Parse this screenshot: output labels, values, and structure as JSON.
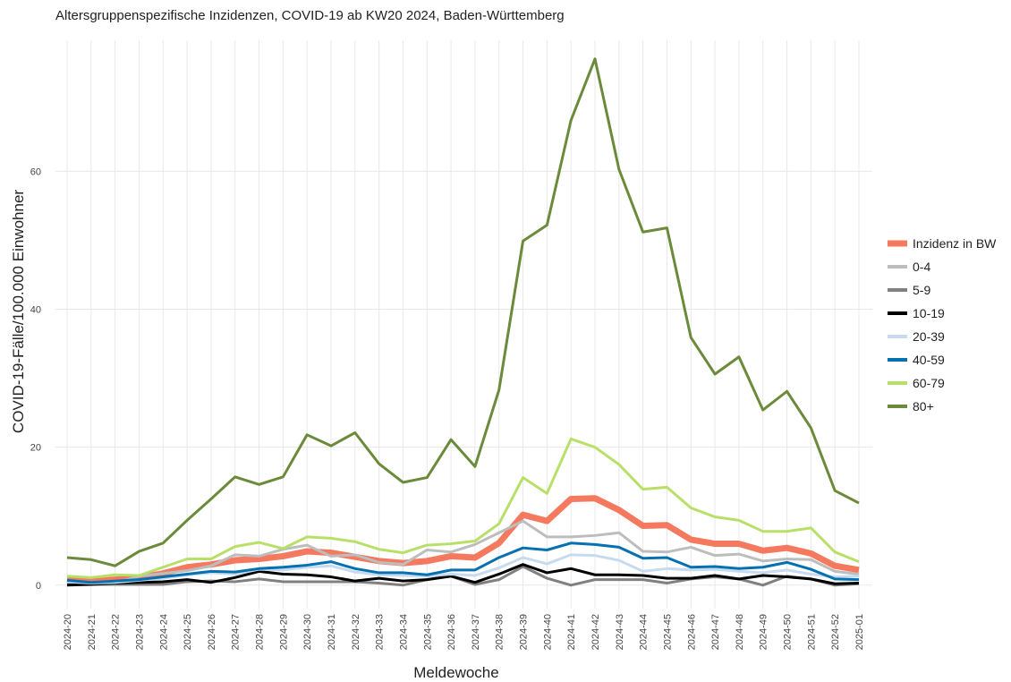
{
  "chart_data": {
    "type": "line",
    "title": "Altersgruppenspezifische Inzidenzen, COVID-19 ab KW20 2024, Baden-Württemberg",
    "x_label": "Meldewoche",
    "y_label": "COVID-19-Fälle/100.000 Einwohner",
    "categories": [
      "2024-20",
      "2024-21",
      "2024-22",
      "2024-23",
      "2024-24",
      "2024-25",
      "2024-26",
      "2024-27",
      "2024-28",
      "2024-29",
      "2024-30",
      "2024-31",
      "2024-32",
      "2024-33",
      "2024-34",
      "2024-35",
      "2024-36",
      "2024-37",
      "2024-38",
      "2024-39",
      "2024-40",
      "2024-41",
      "2024-42",
      "2024-43",
      "2024-44",
      "2024-45",
      "2024-46",
      "2024-47",
      "2024-48",
      "2024-49",
      "2024-50",
      "2024-51",
      "2024-52",
      "2025-01"
    ],
    "ylim": [
      -3.4,
      79
    ],
    "yticks": [
      0,
      20,
      40,
      60
    ],
    "grid": true,
    "series": [
      {
        "name": "Inzidenz in BW",
        "color": "#f4795f",
        "values": [
          0.7,
          0.5,
          0.8,
          1.1,
          1.7,
          2.6,
          3.0,
          3.6,
          3.8,
          4.2,
          4.9,
          4.7,
          4.1,
          3.5,
          3.2,
          3.5,
          4.2,
          4.0,
          6.1,
          10.2,
          9.3,
          12.5,
          12.6,
          10.9,
          8.6,
          8.7,
          6.6,
          6.0,
          6.0,
          5.0,
          5.4,
          4.6,
          2.8,
          2.2
        ]
      },
      {
        "name": "0-4",
        "color": "#bdbdbd",
        "values": [
          0.5,
          0.3,
          0.3,
          1.3,
          1.7,
          2.1,
          2.8,
          4.4,
          4.2,
          5.2,
          5.8,
          4.2,
          4.4,
          3.3,
          3.0,
          5.1,
          4.8,
          5.9,
          7.6,
          9.3,
          7.0,
          7.0,
          7.2,
          7.6,
          4.9,
          4.8,
          5.5,
          4.3,
          4.5,
          3.5,
          3.8,
          3.7,
          2.0,
          1.6
        ]
      },
      {
        "name": "5-9",
        "color": "#808080",
        "values": [
          0.2,
          0.1,
          0.1,
          0.1,
          0.1,
          0.5,
          0.6,
          0.5,
          0.9,
          0.5,
          0.5,
          0.5,
          0.5,
          0.3,
          0.0,
          0.8,
          1.3,
          0.1,
          0.8,
          2.7,
          1.0,
          0.0,
          0.8,
          0.8,
          0.8,
          0.3,
          0.9,
          1.2,
          0.9,
          0.0,
          1.3,
          0.9,
          0.0,
          0.2
        ]
      },
      {
        "name": "10-19",
        "color": "#000000",
        "values": [
          0.0,
          0.1,
          0.3,
          0.4,
          0.5,
          0.8,
          0.4,
          1.1,
          2.0,
          1.6,
          1.5,
          1.2,
          0.6,
          1.0,
          0.6,
          0.8,
          1.3,
          0.4,
          1.6,
          3.0,
          1.8,
          2.4,
          1.5,
          1.5,
          1.4,
          1.0,
          1.0,
          1.4,
          0.9,
          1.4,
          1.2,
          0.9,
          0.2,
          0.3
        ]
      },
      {
        "name": "20-39",
        "color": "#c6dbef",
        "values": [
          0.5,
          0.3,
          0.4,
          0.7,
          1.0,
          1.5,
          1.8,
          1.6,
          2.3,
          2.2,
          2.6,
          2.8,
          1.9,
          1.5,
          1.4,
          1.3,
          1.6,
          1.4,
          2.5,
          4.0,
          3.1,
          4.4,
          4.3,
          3.6,
          2.0,
          2.4,
          2.2,
          2.3,
          2.0,
          1.8,
          2.2,
          1.6,
          1.2,
          1.3
        ]
      },
      {
        "name": "40-59",
        "color": "#0571b0",
        "values": [
          0.7,
          0.4,
          0.6,
          0.8,
          1.2,
          1.6,
          2.0,
          1.9,
          2.4,
          2.6,
          2.9,
          3.4,
          2.4,
          1.8,
          1.8,
          1.5,
          2.2,
          2.2,
          4.0,
          5.4,
          5.1,
          6.1,
          5.9,
          5.5,
          3.9,
          4.0,
          2.6,
          2.7,
          2.4,
          2.6,
          3.3,
          2.3,
          0.9,
          0.8
        ]
      },
      {
        "name": "60-79",
        "color": "#b8e068",
        "values": [
          1.3,
          1.1,
          1.5,
          1.4,
          2.6,
          3.8,
          3.8,
          5.6,
          6.2,
          5.3,
          7.0,
          6.8,
          6.3,
          5.2,
          4.7,
          5.8,
          6.0,
          6.4,
          8.9,
          15.6,
          13.3,
          21.2,
          20.0,
          17.5,
          13.9,
          14.2,
          11.2,
          9.9,
          9.4,
          7.8,
          7.8,
          8.3,
          4.8,
          3.4
        ]
      },
      {
        "name": "80+",
        "color": "#6b8a3a",
        "values": [
          4.0,
          3.7,
          2.8,
          4.9,
          6.1,
          9.4,
          12.5,
          15.7,
          14.6,
          15.7,
          21.8,
          20.2,
          22.1,
          17.6,
          14.9,
          15.6,
          21.1,
          17.2,
          28.3,
          49.9,
          52.2,
          67.4,
          76.3,
          60.3,
          51.2,
          51.8,
          35.9,
          30.6,
          33.1,
          25.4,
          28.1,
          22.8,
          13.7,
          11.9
        ]
      }
    ]
  }
}
